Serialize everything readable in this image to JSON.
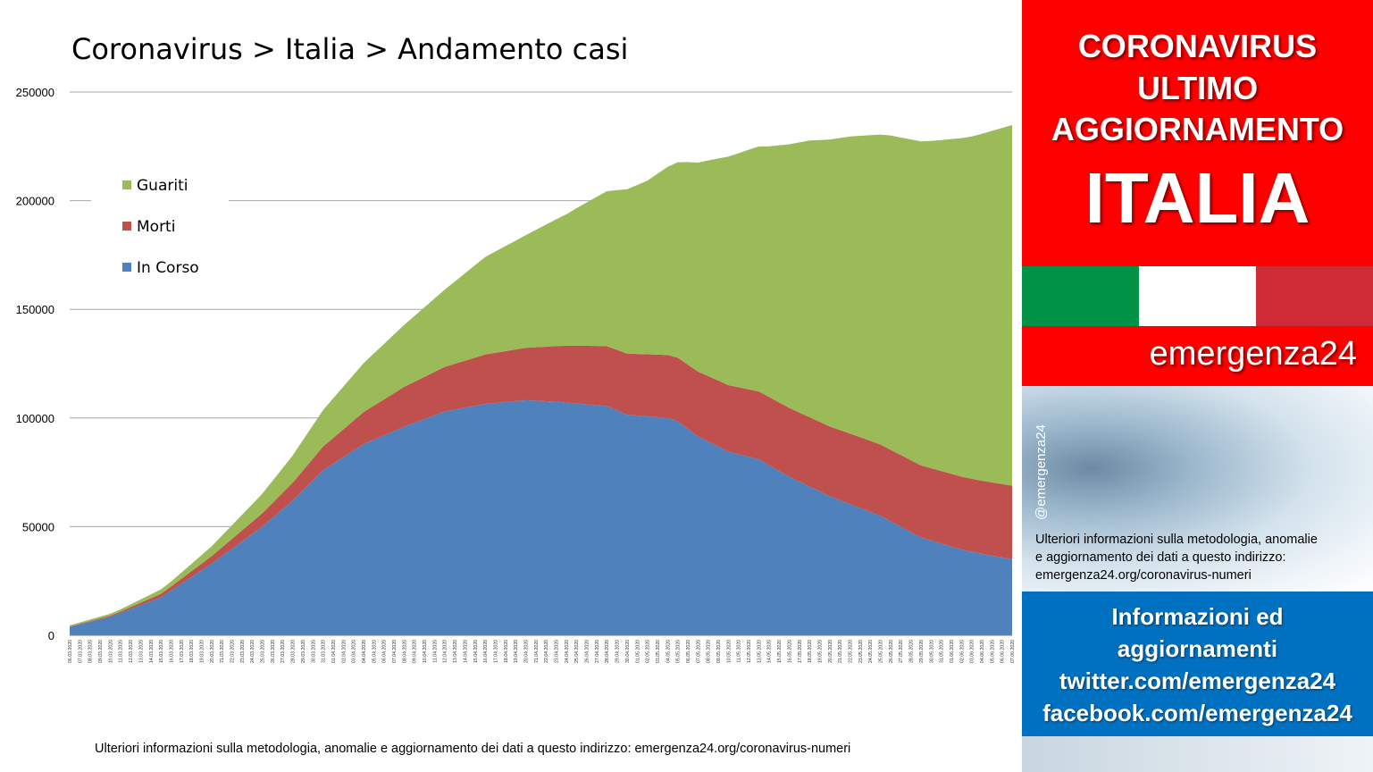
{
  "chart_data": {
    "type": "area",
    "stacked": true,
    "title": "Coronavirus > Italia > Andamento casi",
    "xlabel": "",
    "ylabel": "",
    "ylim": [
      0,
      250000
    ],
    "yticks": [
      0,
      50000,
      100000,
      150000,
      200000,
      250000
    ],
    "grid": true,
    "legend_position": "upper-left",
    "x_start": "06.03.2020",
    "x_end": "07.06.2020",
    "x_tick_labels": [
      "06.03.2020",
      "07.03.2020",
      "08.03.2020",
      "09.03.2020",
      "10.03.2020",
      "11.03.2020",
      "12.03.2020",
      "13.03.2020",
      "14.03.2020",
      "15.03.2020",
      "16.03.2020",
      "17.03.2020",
      "18.03.2020",
      "19.03.2020",
      "20.03.2020",
      "21.03.2020",
      "22.03.2020",
      "23.03.2020",
      "24.03.2020",
      "25.03.2020",
      "26.03.2020",
      "27.03.2020",
      "28.03.2020",
      "29.03.2020",
      "30.03.2020",
      "31.03.2020",
      "01.04.2020",
      "02.04.2020",
      "03.04.2020",
      "04.04.2020",
      "05.04.2020",
      "06.04.2020",
      "07.04.2020",
      "08.04.2020",
      "09.04.2020",
      "10.04.2020",
      "11.04.2020",
      "12.04.2020",
      "13.04.2020",
      "14.04.2020",
      "15.04.2020",
      "16.04.2020",
      "17.04.2020",
      "18.04.2020",
      "19.04.2020",
      "20.04.2020",
      "21.04.2020",
      "22.04.2020",
      "23.04.2020",
      "24.04.2020",
      "25.04.2020",
      "26.04.2020",
      "27.04.2020",
      "28.04.2020",
      "29.04.2020",
      "30.04.2020",
      "01.05.2020",
      "02.05.2020",
      "03.05.2020",
      "04.05.2020",
      "05.05.2020",
      "06.05.2020",
      "07.05.2020",
      "08.05.2020",
      "09.05.2020",
      "10.05.2020",
      "11.05.2020",
      "12.05.2020",
      "13.05.2020",
      "14.05.2020",
      "15.05.2020",
      "16.05.2020",
      "17.05.2020",
      "18.05.2020",
      "19.05.2020",
      "20.05.2020",
      "21.05.2020",
      "22.05.2020",
      "23.05.2020",
      "24.05.2020",
      "25.05.2020",
      "26.05.2020",
      "27.05.2020",
      "28.05.2020",
      "29.05.2020",
      "30.05.2020",
      "31.05.2020",
      "01.06.2020",
      "02.06.2020",
      "03.06.2020",
      "04.06.2020",
      "05.06.2020",
      "06.06.2020",
      "07.06.2020"
    ],
    "series": [
      {
        "name": "In Corso",
        "color": "#4f81bd",
        "anchors": [
          [
            0,
            3900
          ],
          [
            4,
            8500
          ],
          [
            9,
            17500
          ],
          [
            14,
            33000
          ],
          [
            19,
            50000
          ],
          [
            22,
            62000
          ],
          [
            25,
            76000
          ],
          [
            29,
            88000
          ],
          [
            33,
            96000
          ],
          [
            37,
            103000
          ],
          [
            41,
            106500
          ],
          [
            45,
            108200
          ],
          [
            48,
            107500
          ],
          [
            53,
            105500
          ],
          [
            55,
            101500
          ],
          [
            59,
            100000
          ],
          [
            60,
            98500
          ],
          [
            62,
            91500
          ],
          [
            65,
            84500
          ],
          [
            68,
            81000
          ],
          [
            71,
            73000
          ],
          [
            75,
            64000
          ],
          [
            80,
            55000
          ],
          [
            84,
            45000
          ],
          [
            88,
            39500
          ],
          [
            90,
            37500
          ],
          [
            93,
            35000
          ]
        ]
      },
      {
        "name": "Morti",
        "color": "#c0504d",
        "anchors": [
          [
            0,
            150
          ],
          [
            5,
            600
          ],
          [
            10,
            1800
          ],
          [
            14,
            3400
          ],
          [
            19,
            6100
          ],
          [
            22,
            8200
          ],
          [
            25,
            10800
          ],
          [
            29,
            14700
          ],
          [
            33,
            18300
          ],
          [
            37,
            20500
          ],
          [
            41,
            22700
          ],
          [
            45,
            24100
          ],
          [
            50,
            26600
          ],
          [
            54,
            27900
          ],
          [
            59,
            29000
          ],
          [
            64,
            30400
          ],
          [
            69,
            31400
          ],
          [
            74,
            32000
          ],
          [
            79,
            32700
          ],
          [
            84,
            33200
          ],
          [
            88,
            33500
          ],
          [
            93,
            33800
          ]
        ]
      },
      {
        "name": "Guariti",
        "color": "#9bbb59",
        "anchors": [
          [
            0,
            500
          ],
          [
            5,
            1000
          ],
          [
            10,
            2300
          ],
          [
            14,
            4500
          ],
          [
            19,
            9000
          ],
          [
            22,
            12500
          ],
          [
            25,
            16800
          ],
          [
            29,
            22500
          ],
          [
            33,
            28500
          ],
          [
            37,
            35500
          ],
          [
            41,
            44900
          ],
          [
            45,
            51800
          ],
          [
            49,
            60500
          ],
          [
            53,
            71300
          ],
          [
            57,
            79900
          ],
          [
            61,
            93200
          ],
          [
            65,
            105200
          ],
          [
            69,
            115300
          ],
          [
            73,
            127300
          ],
          [
            77,
            136700
          ],
          [
            81,
            144600
          ],
          [
            85,
            150600
          ],
          [
            89,
            157500
          ],
          [
            93,
            166000
          ]
        ]
      }
    ]
  },
  "legend": {
    "items": [
      {
        "label": "Guariti",
        "color": "#9bbb59"
      },
      {
        "label": "Morti",
        "color": "#c0504d"
      },
      {
        "label": "In Corso",
        "color": "#4f81bd"
      }
    ]
  },
  "footer": {
    "note": "Ulteriori informazioni sulla metodologia, anomalie e aggiornamento dei dati a questo indirizzo: emergenza24.org/coronavirus-numeri"
  },
  "sidebar": {
    "title_lines": [
      "CORONAVIRUS",
      "ULTIMO",
      "AGGIORNAMENTO"
    ],
    "country": "ITALIA",
    "brand": "emergenza24",
    "handle": "@emergenza24",
    "info_lines": [
      "Ulteriori informazioni sulla metodologia, anomalie",
      "e aggiornamento dei dati a questo indirizzo:",
      "emergenza24.org/coronavirus-numeri"
    ],
    "links_lines": [
      "Informazioni ed",
      "aggiornamenti",
      "twitter.com/emergenza24",
      "facebook.com/emergenza24"
    ],
    "colors": {
      "red": "#ff0000",
      "blue": "#0070c0",
      "flag_green": "#009246",
      "flag_red": "#ce2b37"
    }
  }
}
